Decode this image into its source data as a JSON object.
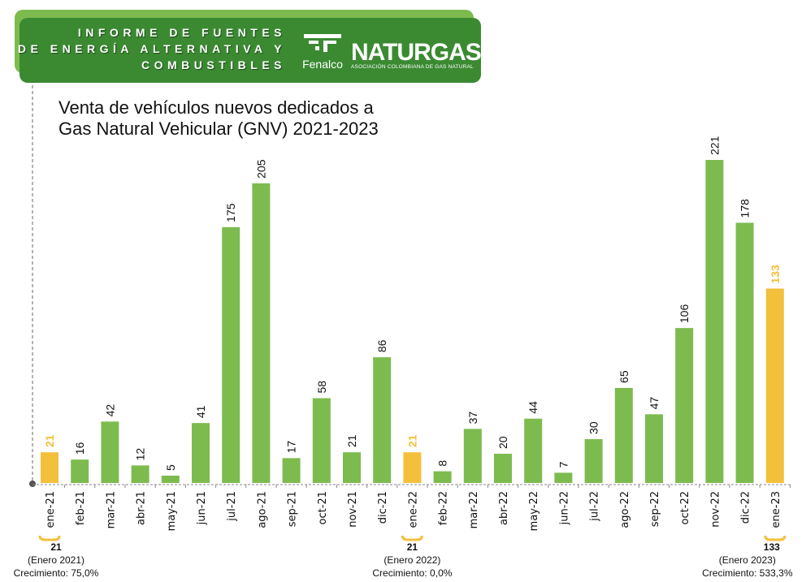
{
  "header": {
    "title_lines": [
      "INFORME DE FUENTES",
      "DE ENERGÍA ALTERNATIVA Y",
      "COMBUSTIBLES"
    ],
    "logo1": "Fenalco",
    "logo2": "NATURGAS",
    "logo2_sub": "ASOCIACIÓN COLOMBIANA DE GAS NATURAL"
  },
  "chart_data": {
    "type": "bar",
    "title": "Venta de vehículos nuevos dedicados a Gas Natural Vehicular (GNV) 2021-2023",
    "title_lines": [
      "Venta de vehículos nuevos dedicados a",
      "Gas Natural Vehicular (GNV) 2021-2023"
    ],
    "categories": [
      "ene-21",
      "feb-21",
      "mar-21",
      "abr-21",
      "may-21",
      "jun-21",
      "jul-21",
      "ago-21",
      "sep-21",
      "oct-21",
      "nov-21",
      "dic-21",
      "ene-22",
      "feb-22",
      "mar-22",
      "abr-22",
      "may-22",
      "jun-22",
      "jul-22",
      "ago-22",
      "sep-22",
      "oct-22",
      "nov-22",
      "dic-22",
      "ene-23"
    ],
    "values": [
      21,
      16,
      42,
      12,
      5,
      41,
      175,
      205,
      17,
      58,
      21,
      86,
      21,
      8,
      37,
      20,
      44,
      7,
      30,
      65,
      47,
      106,
      221,
      178,
      133
    ],
    "highlighted": [
      "ene-21",
      "ene-22",
      "ene-23"
    ],
    "colors": {
      "bar": "#7dbb4f",
      "highlight": "#f3c03c",
      "label": "#111111",
      "highlight_label": "#f3c03c"
    },
    "ylim": [
      0,
      221
    ],
    "grid": false,
    "annotations": [
      {
        "category": "ene-21",
        "value": "21",
        "period": "(Enero 2021)",
        "growth": "Crecimiento: 75,0%"
      },
      {
        "category": "ene-22",
        "value": "21",
        "period": "(Enero 2022)",
        "growth": "Crecimiento: 0,0%"
      },
      {
        "category": "ene-23",
        "value": "133",
        "period": "(Enero 2023)",
        "growth": "Crecimiento: 533,3%"
      }
    ]
  }
}
